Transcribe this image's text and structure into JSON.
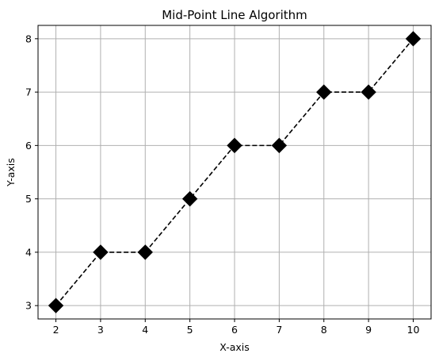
{
  "chart_data": {
    "type": "line",
    "title": "Mid-Point Line Algorithm",
    "xlabel": "X-axis",
    "ylabel": "Y-axis",
    "x": [
      2,
      3,
      4,
      5,
      6,
      7,
      8,
      9,
      10
    ],
    "series": [
      {
        "values": [
          3,
          4,
          4,
          5,
          6,
          6,
          7,
          7,
          8
        ]
      }
    ],
    "xlim": [
      1.6,
      10.4
    ],
    "ylim": [
      2.75,
      8.25
    ],
    "xticks": [
      "2",
      "3",
      "4",
      "5",
      "6",
      "7",
      "8",
      "9",
      "10"
    ],
    "yticks": [
      "3",
      "4",
      "5",
      "6",
      "7",
      "8"
    ],
    "grid": true,
    "line_style": "dashed",
    "marker": "diamond",
    "colors": {
      "line": "#000000",
      "marker": "#000000",
      "grid": "#b0b0b0"
    }
  }
}
